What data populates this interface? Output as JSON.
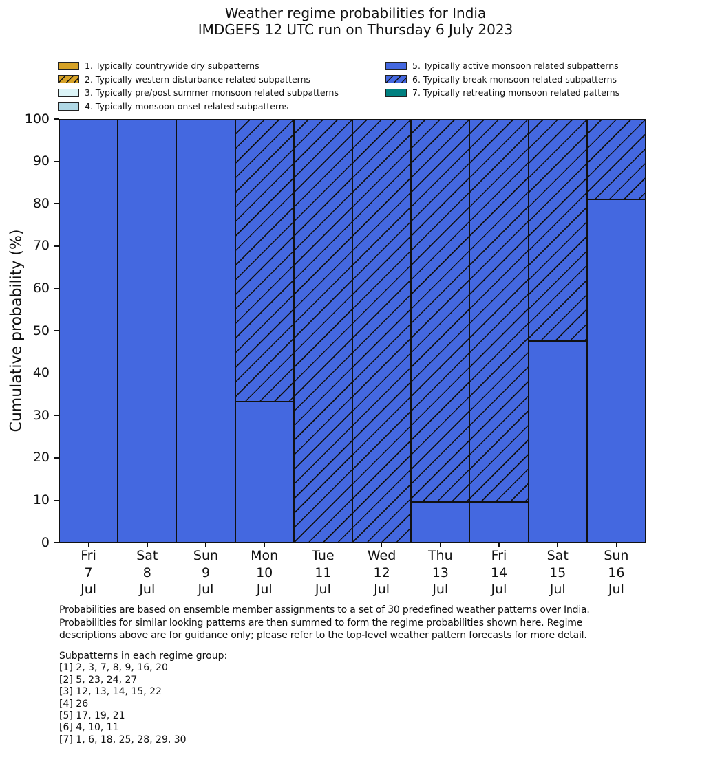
{
  "title": {
    "line1": "Weather regime probabilities for India",
    "line2": "IMDGEFS 12 UTC run on Thursday 6 July 2023"
  },
  "legend": {
    "items": [
      {
        "label": "1. Typically countrywide dry subpatterns",
        "color": "#d6a227",
        "hatch": false,
        "column": "left"
      },
      {
        "label": "2. Typically western disturbance related subpatterns",
        "color": "#d6a227",
        "hatch": true,
        "column": "left"
      },
      {
        "label": "3. Typically pre/post summer monsoon related subpatterns",
        "color": "#dcf4f7",
        "hatch": false,
        "column": "left"
      },
      {
        "label": "4. Typically monsoon onset related subpatterns",
        "color": "#b0d8e5",
        "hatch": false,
        "column": "left"
      },
      {
        "label": "5. Typically active monsoon related subpatterns",
        "color": "#4468e0",
        "hatch": false,
        "column": "right"
      },
      {
        "label": "6. Typically break monsoon related subpatterns",
        "color": "#4468e0",
        "hatch": true,
        "column": "right"
      },
      {
        "label": "7. Typically retreating monsoon related patterns",
        "color": "#008080",
        "hatch": false,
        "column": "right"
      }
    ]
  },
  "chart_data": {
    "type": "bar",
    "stacked": true,
    "title": "Weather regime probabilities for India — IMDGEFS 12 UTC run on Thursday 6 July 2023",
    "ylabel": "Cumulative probability (%)",
    "ylim": [
      0,
      100
    ],
    "yticks": [
      0,
      10,
      20,
      30,
      40,
      50,
      60,
      70,
      80,
      90,
      100
    ],
    "grid": false,
    "legend_position": "above-plot, two columns",
    "categories": [
      {
        "day": "Fri",
        "date": "7",
        "month": "Jul"
      },
      {
        "day": "Sat",
        "date": "8",
        "month": "Jul"
      },
      {
        "day": "Sun",
        "date": "9",
        "month": "Jul"
      },
      {
        "day": "Mon",
        "date": "10",
        "month": "Jul"
      },
      {
        "day": "Tue",
        "date": "11",
        "month": "Jul"
      },
      {
        "day": "Wed",
        "date": "12",
        "month": "Jul"
      },
      {
        "day": "Thu",
        "date": "13",
        "month": "Jul"
      },
      {
        "day": "Fri",
        "date": "14",
        "month": "Jul"
      },
      {
        "day": "Sat",
        "date": "15",
        "month": "Jul"
      },
      {
        "day": "Sun",
        "date": "16",
        "month": "Jul"
      }
    ],
    "series": [
      {
        "name": "5. Typically active monsoon related subpatterns",
        "color": "#4468e0",
        "hatch": false,
        "values": [
          100,
          100,
          100,
          33.3,
          0,
          0,
          9.5,
          9.5,
          47.6,
          81.0
        ]
      },
      {
        "name": "6. Typically break monsoon related subpatterns",
        "color": "#4468e0",
        "hatch": true,
        "values": [
          0,
          0,
          0,
          66.7,
          100,
          100,
          90.5,
          90.5,
          52.4,
          19.0
        ]
      }
    ]
  },
  "footer": {
    "paragraph_lines": [
      "Probabilities are based on ensemble member assignments to a set of 30 predefined weather patterns over India.",
      "Probabilities for similar looking patterns are then summed to form the regime probabilities shown here. Regime",
      "descriptions above are for guidance only; please refer to the top-level weather pattern forecasts for more detail."
    ],
    "subpatterns_title": "Subpatterns in each regime group:",
    "subpatterns": [
      "[1] 2, 3, 7, 8, 9, 16, 20",
      "[2] 5, 23, 24, 27",
      "[3] 12, 13, 14, 15, 22",
      "[4] 26",
      "[5] 17, 19, 21",
      "[6] 4, 10, 11",
      "[7] 1, 6, 18, 25, 28, 29, 30"
    ]
  }
}
